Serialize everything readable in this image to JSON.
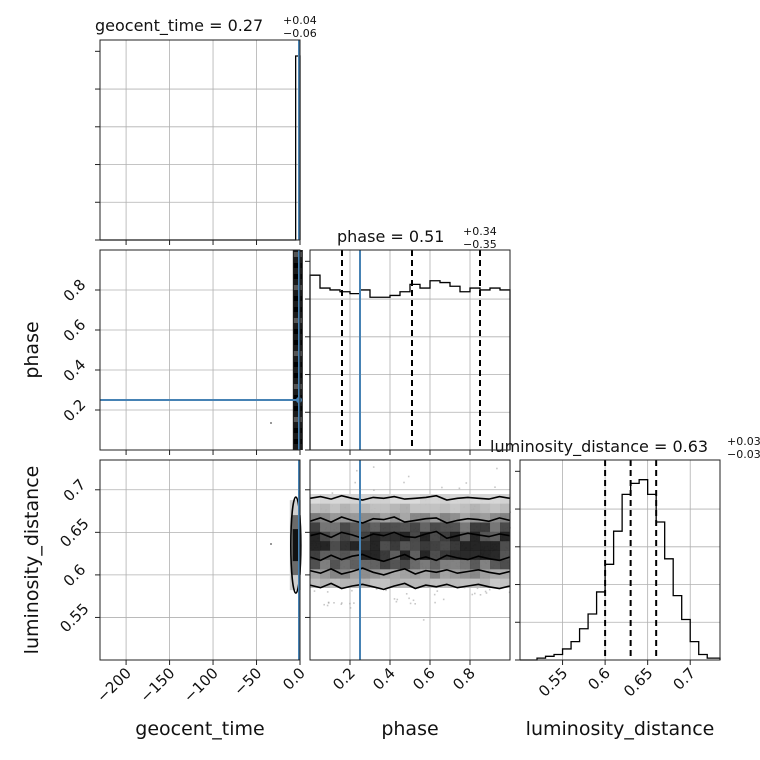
{
  "chart_data": {
    "type": "corner",
    "parameters": [
      {
        "key": "geocent_time",
        "label": "geocent_time",
        "range": [
          -230,
          0
        ],
        "ticks": [
          -200,
          -150,
          -100,
          -50,
          0
        ]
      },
      {
        "key": "phase",
        "label": "phase",
        "range": [
          0.0,
          1.0
        ],
        "ticks": [
          0.2,
          0.4,
          0.6,
          0.8
        ]
      },
      {
        "key": "luminosity_distance",
        "label": "luminosity_distance",
        "range": [
          0.5,
          0.735
        ],
        "ticks": [
          0.55,
          0.6,
          0.65,
          0.7
        ]
      }
    ],
    "titles": {
      "geocent_time": {
        "name": "geocent_time = 0.27",
        "sup": "+0.04",
        "sub": "−0.06"
      },
      "phase": {
        "name": "phase = 0.51",
        "sup": "+0.34",
        "sub": "−0.35"
      },
      "luminosity_distance": {
        "name": "luminosity_distance = 0.63",
        "sup": "+0.03",
        "sub": "−0.03"
      }
    },
    "quantiles": {
      "phase": [
        0.16,
        0.51,
        0.85
      ],
      "luminosity_distance": [
        0.6,
        0.63,
        0.66
      ]
    },
    "truths": {
      "geocent_time": 0,
      "phase": 0.25,
      "luminosity_distance": null
    },
    "histograms": {
      "geocent_time": {
        "edges": [
          -230,
          -5,
          0
        ],
        "counts": [
          0,
          1
        ]
      },
      "phase": {
        "edges": [
          0.0,
          0.05,
          0.1,
          0.15,
          0.2,
          0.25,
          0.3,
          0.35,
          0.4,
          0.45,
          0.5,
          0.55,
          0.6,
          0.65,
          0.7,
          0.75,
          0.8,
          0.85,
          0.9,
          0.95,
          1.0
        ],
        "counts": [
          0.95,
          0.88,
          0.87,
          0.86,
          0.85,
          0.87,
          0.83,
          0.83,
          0.84,
          0.86,
          0.9,
          0.88,
          0.92,
          0.91,
          0.89,
          0.86,
          0.88,
          0.87,
          0.88,
          0.87
        ]
      },
      "luminosity_distance": {
        "edges": [
          0.5,
          0.51,
          0.52,
          0.53,
          0.54,
          0.55,
          0.56,
          0.57,
          0.58,
          0.59,
          0.6,
          0.61,
          0.62,
          0.63,
          0.64,
          0.65,
          0.66,
          0.67,
          0.68,
          0.69,
          0.7,
          0.71,
          0.72,
          0.735
        ],
        "counts": [
          0,
          0,
          0.01,
          0.02,
          0.03,
          0.06,
          0.1,
          0.17,
          0.25,
          0.37,
          0.52,
          0.7,
          0.9,
          0.96,
          0.98,
          0.9,
          0.75,
          0.55,
          0.35,
          0.22,
          0.1,
          0.03,
          0.01
        ]
      }
    },
    "contours_phase_vs_distance": [
      {
        "y": [
          0.69,
          0.692,
          0.689,
          0.693,
          0.69,
          0.688,
          0.691,
          0.69,
          0.692,
          0.689,
          0.69,
          0.691,
          0.693,
          0.688,
          0.69,
          0.691,
          0.69,
          0.689,
          0.692,
          0.69
        ]
      },
      {
        "y": [
          0.663,
          0.667,
          0.662,
          0.668,
          0.664,
          0.661,
          0.666,
          0.665,
          0.668,
          0.662,
          0.664,
          0.666,
          0.667,
          0.661,
          0.664,
          0.666,
          0.665,
          0.663,
          0.667,
          0.664
        ]
      },
      {
        "y": [
          0.646,
          0.649,
          0.644,
          0.65,
          0.647,
          0.643,
          0.648,
          0.646,
          0.65,
          0.645,
          0.644,
          0.648,
          0.651,
          0.643,
          0.646,
          0.649,
          0.647,
          0.645,
          0.648,
          0.646
        ]
      },
      {
        "y": [
          0.621,
          0.617,
          0.623,
          0.618,
          0.622,
          0.624,
          0.619,
          0.616,
          0.62,
          0.624,
          0.618,
          0.621,
          0.617,
          0.623,
          0.62,
          0.618,
          0.622,
          0.619,
          0.617,
          0.621
        ]
      },
      {
        "y": [
          0.605,
          0.602,
          0.607,
          0.601,
          0.604,
          0.608,
          0.603,
          0.6,
          0.604,
          0.607,
          0.601,
          0.605,
          0.603,
          0.606,
          0.602,
          0.604,
          0.606,
          0.603,
          0.601,
          0.604
        ]
      },
      {
        "y": [
          0.588,
          0.585,
          0.59,
          0.584,
          0.587,
          0.589,
          0.586,
          0.583,
          0.587,
          0.59,
          0.584,
          0.588,
          0.586,
          0.589,
          0.585,
          0.587,
          0.589,
          0.586,
          0.584,
          0.587
        ]
      }
    ]
  }
}
